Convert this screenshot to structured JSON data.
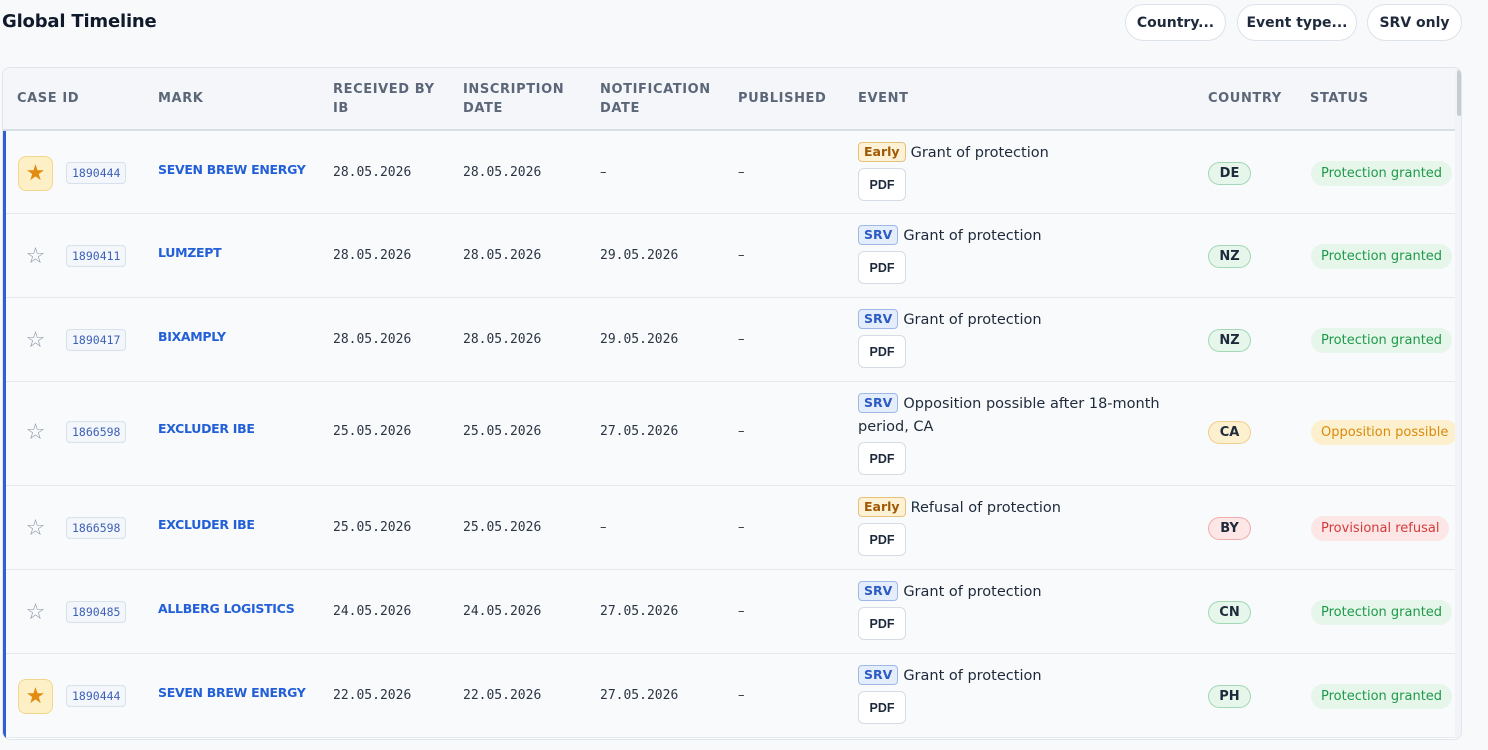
{
  "header": {
    "title": "Global Timeline",
    "filters": {
      "country": "Country...",
      "event_type": "Event type...",
      "srv_only": "SRV only"
    }
  },
  "table": {
    "columns": {
      "case_id": "CASE ID",
      "mark": "MARK",
      "received_by_ib": "RECEIVED BY IB",
      "inscription_date": "INSCRIPTION DATE",
      "notification_date": "NOTIFICATION DATE",
      "published": "PUBLISHED",
      "event": "EVENT",
      "country": "COUNTRY",
      "status": "STATUS"
    },
    "pdf_label": "PDF",
    "rows": [
      {
        "starred": true,
        "case_id": "1890444",
        "mark": "SEVEN BREW ENERGY",
        "received": "28.05.2026",
        "inscription": "28.05.2026",
        "notification": "–",
        "published": "–",
        "tag": "Early",
        "event": "Grant of protection",
        "country": "DE",
        "status": "Protection granted",
        "status_kind": "granted"
      },
      {
        "starred": false,
        "case_id": "1890411",
        "mark": "LUMZEPT",
        "received": "28.05.2026",
        "inscription": "28.05.2026",
        "notification": "29.05.2026",
        "published": "–",
        "tag": "SRV",
        "event": "Grant of protection",
        "country": "NZ",
        "status": "Protection granted",
        "status_kind": "granted"
      },
      {
        "starred": false,
        "case_id": "1890417",
        "mark": "BIXAMPLY",
        "received": "28.05.2026",
        "inscription": "28.05.2026",
        "notification": "29.05.2026",
        "published": "–",
        "tag": "SRV",
        "event": "Grant of protection",
        "country": "NZ",
        "status": "Protection granted",
        "status_kind": "granted"
      },
      {
        "starred": false,
        "case_id": "1866598",
        "mark": "EXCLUDER IBE",
        "received": "25.05.2026",
        "inscription": "25.05.2026",
        "notification": "27.05.2026",
        "published": "–",
        "tag": "SRV",
        "event": "Opposition possible after 18-month period, CA",
        "country": "CA",
        "status": "Opposition possible",
        "status_kind": "opposition"
      },
      {
        "starred": false,
        "case_id": "1866598",
        "mark": "EXCLUDER IBE",
        "received": "25.05.2026",
        "inscription": "25.05.2026",
        "notification": "–",
        "published": "–",
        "tag": "Early",
        "event": "Refusal of protection",
        "country": "BY",
        "status": "Provisional refusal",
        "status_kind": "refusal"
      },
      {
        "starred": false,
        "case_id": "1890485",
        "mark": "ALLBERG LOGISTICS",
        "received": "24.05.2026",
        "inscription": "24.05.2026",
        "notification": "27.05.2026",
        "published": "–",
        "tag": "SRV",
        "event": "Grant of protection",
        "country": "CN",
        "status": "Protection granted",
        "status_kind": "granted"
      },
      {
        "starred": true,
        "case_id": "1890444",
        "mark": "SEVEN BREW ENERGY",
        "received": "22.05.2026",
        "inscription": "22.05.2026",
        "notification": "27.05.2026",
        "published": "–",
        "tag": "SRV",
        "event": "Grant of protection",
        "country": "PH",
        "status": "Protection granted",
        "status_kind": "granted"
      }
    ]
  },
  "colors": {
    "accent": "#2f5fd3",
    "granted_bg": "#e6f6ea",
    "granted_fg": "#1e9a4a",
    "opposition_bg": "#fdf0cf",
    "opposition_fg": "#d98a0c",
    "refusal_bg": "#fde6e6",
    "refusal_fg": "#d43b3b"
  },
  "icons": {
    "star_on": "star-filled-icon",
    "star_off": "star-outline-icon"
  }
}
